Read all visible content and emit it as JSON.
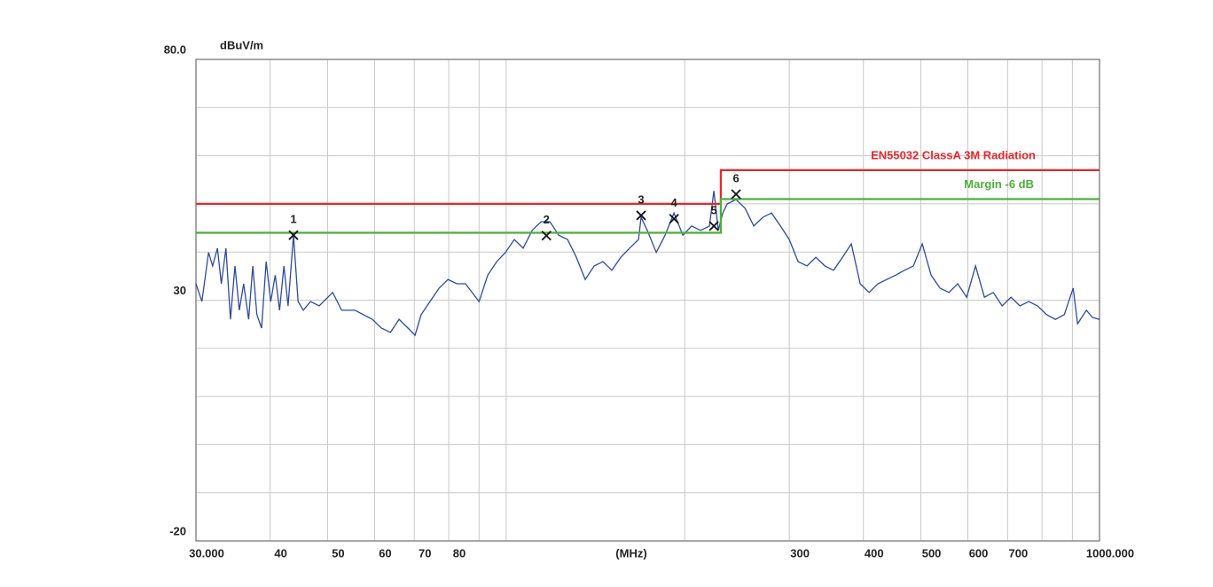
{
  "chart_data": {
    "type": "line",
    "yunit": "dBuV/m",
    "xlabel": "(MHz)",
    "xscale": "log",
    "grid": true,
    "xlim": [
      30,
      1000
    ],
    "ylim": [
      -20,
      80
    ],
    "xticks": [
      {
        "value": 30,
        "label": "30.000"
      },
      40,
      50,
      60,
      70,
      80,
      {
        "value": 90,
        "label": null
      },
      {
        "value": 100,
        "label": null
      },
      {
        "value": 200,
        "label": null
      },
      300,
      400,
      500,
      600,
      700,
      {
        "value": 800,
        "label": null
      },
      {
        "value": 900,
        "label": null
      },
      {
        "value": 1000,
        "label": "1000.000"
      }
    ],
    "yticks": [
      {
        "value": 80,
        "label": "80.0"
      },
      {
        "value": 70,
        "label": null
      },
      {
        "value": 60,
        "label": null
      },
      {
        "value": 50,
        "label": null
      },
      {
        "value": 40,
        "label": null
      },
      30,
      {
        "value": 20,
        "label": null
      },
      {
        "value": 10,
        "label": null
      },
      {
        "value": 0,
        "label": null
      },
      {
        "value": -10,
        "label": null
      },
      -20
    ],
    "series": [
      {
        "name": "EN55032 ClassA 3M Radiation",
        "color": "#e8262b",
        "x": [
          30,
          230,
          230,
          1000
        ],
        "values": [
          50,
          50,
          57,
          57
        ]
      },
      {
        "name": "Margin -6 dB",
        "color": "#4caf3a",
        "x": [
          30,
          230,
          230,
          1000
        ],
        "values": [
          44,
          44,
          51,
          51
        ]
      },
      {
        "color": "#2e4a9e",
        "x": [
          30,
          30.7,
          31.5,
          32.0,
          32.6,
          33.1,
          33.7,
          34.3,
          34.9,
          35.5,
          36.1,
          36.8,
          37.4,
          38.0,
          38.7,
          39.4,
          40.1,
          40.8,
          41.5,
          42.2,
          42.9,
          43.8,
          44.6,
          45.5,
          46.8,
          48.4,
          51.0,
          52.8,
          55.6,
          59.5,
          61.6,
          63.8,
          66.0,
          68.3,
          70.2,
          71.9,
          74.4,
          77.1,
          79.8,
          82.6,
          85.4,
          90.0,
          93.1,
          96.4,
          99.7,
          103.2,
          106.8,
          110.6,
          114.5,
          118.5,
          122.6,
          126.9,
          131.3,
          135.9,
          140.7,
          145.6,
          150.7,
          156.0,
          161.4,
          167.1,
          168.8,
          172.9,
          179.0,
          185.3,
          191.8,
          198.5,
          205.4,
          212.6,
          220.1,
          223.9,
          227.8,
          231.7,
          235.8,
          244.0,
          252.6,
          261.4,
          270.6,
          280.0,
          289.9,
          300,
          310.5,
          321.4,
          332.6,
          344.3,
          356.3,
          368.8,
          381.7,
          395.1,
          408.9,
          423.2,
          438.0,
          453.4,
          469.2,
          485.7,
          502.7,
          520.3,
          538.5,
          557.4,
          576.9,
          597.2,
          618.1,
          639.7,
          662.2,
          685.3,
          709.4,
          734.2,
          760.0,
          786.5,
          814.2,
          842.6,
          872.3,
          902.8,
          918.4,
          950.3,
          973.6,
          1000
        ],
        "values": [
          33.4,
          29.7,
          39.9,
          37.1,
          40.8,
          33.4,
          40.8,
          26.0,
          37.1,
          27.9,
          33.4,
          26.0,
          37.1,
          27.0,
          24.2,
          38.0,
          29.7,
          35.2,
          27.9,
          37.1,
          28.8,
          43.5,
          29.7,
          27.9,
          29.7,
          28.8,
          31.6,
          27.9,
          27.9,
          26.0,
          24.2,
          23.3,
          26.0,
          24.2,
          22.7,
          27.0,
          29.7,
          32.5,
          34.3,
          33.4,
          33.4,
          29.7,
          35.2,
          38.0,
          39.9,
          42.6,
          40.8,
          44.5,
          46.3,
          46.3,
          43.5,
          42.6,
          38.9,
          34.3,
          37.1,
          38.0,
          36.2,
          38.9,
          40.8,
          42.6,
          47.2,
          44.5,
          39.9,
          43.5,
          48.1,
          43.5,
          45.4,
          44.5,
          45.4,
          52.7,
          44.5,
          48.1,
          50.0,
          50.9,
          49.1,
          45.4,
          47.2,
          48.1,
          45.4,
          42.6,
          38.0,
          37.1,
          38.9,
          37.1,
          36.2,
          38.9,
          41.7,
          33.4,
          31.6,
          33.4,
          34.3,
          35.2,
          36.2,
          37.1,
          41.7,
          35.2,
          32.5,
          31.6,
          33.4,
          30.6,
          37.1,
          30.6,
          31.6,
          28.8,
          30.6,
          28.8,
          29.7,
          28.8,
          27.0,
          26.0,
          27.0,
          32.5,
          25.1,
          27.9,
          26.4,
          26.0
        ]
      }
    ],
    "markers": {
      "x": [
        43.8,
        116.9,
        168.8,
        191.8,
        223.9,
        244.0
      ],
      "values": [
        43.5,
        43.4,
        47.6,
        46.9,
        45.4,
        52.0
      ],
      "labels": [
        "1",
        "2",
        "3",
        "4",
        "5",
        "6"
      ]
    }
  }
}
